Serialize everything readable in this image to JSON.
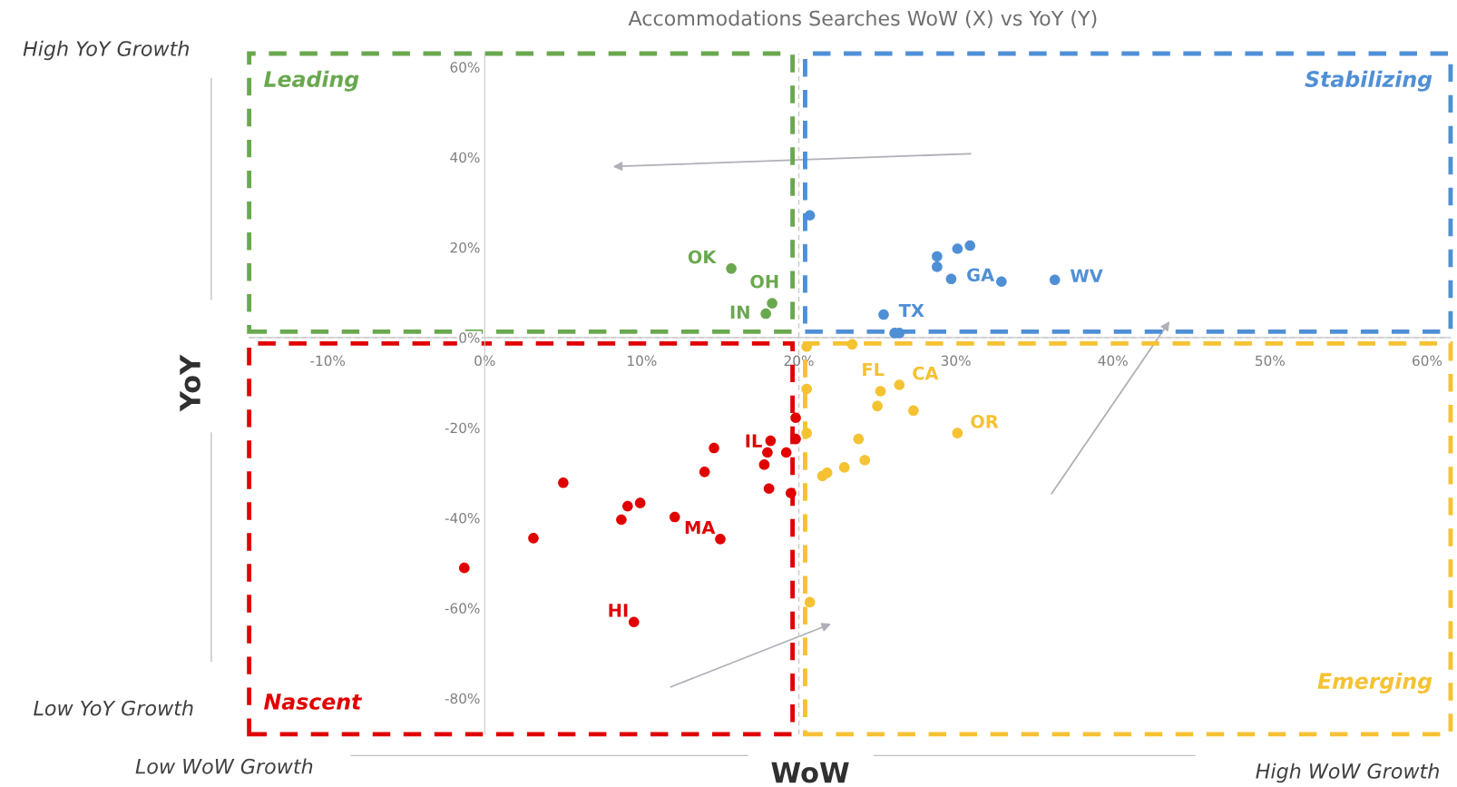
{
  "chart_data": {
    "type": "scatter",
    "title": "Accommodations Searches WoW (X) vs YoY (Y)",
    "xlabel": "WoW",
    "ylabel": "YoY",
    "xlim": [
      -15,
      61.5
    ],
    "ylim": [
      -88,
      63
    ],
    "xticks": [
      {
        "value": -10,
        "label": "-10%"
      },
      {
        "value": 0,
        "label": "0%"
      },
      {
        "value": 10,
        "label": "10%"
      },
      {
        "value": 20,
        "label": "20%"
      },
      {
        "value": 30,
        "label": "30%"
      },
      {
        "value": 40,
        "label": "40%"
      },
      {
        "value": 50,
        "label": "50%"
      },
      {
        "value": 60,
        "label": "60%"
      }
    ],
    "yticks": [
      {
        "value": -80,
        "label": "-80%"
      },
      {
        "value": -60,
        "label": "-60%"
      },
      {
        "value": -40,
        "label": "-40%"
      },
      {
        "value": -20,
        "label": "-20%"
      },
      {
        "value": 0,
        "label": "0%"
      },
      {
        "value": 20,
        "label": "20%"
      },
      {
        "value": 40,
        "label": "40%"
      },
      {
        "value": 60,
        "label": "60%"
      }
    ],
    "marker": "circle",
    "grid": false,
    "legend": false,
    "ref_lines": [
      {
        "axis": "x",
        "value": 20,
        "line_style": "dashed"
      },
      {
        "axis": "y",
        "value": 0,
        "line_style": "dashed"
      }
    ],
    "annotations": [
      "Leading",
      "Stabilizing",
      "Emerging",
      "Nascent",
      "High YoY Growth",
      "Low YoY Growth",
      "Low WoW Growth",
      "High WoW Growth"
    ],
    "series": [
      {
        "color": "#6aa84f",
        "x": [
          15.7,
          18.3,
          17.9
        ],
        "values": [
          15.3,
          7.6,
          5.3
        ],
        "value_labels": [
          "OK",
          "OH",
          "IN"
        ]
      },
      {
        "color": "#4f8fd6",
        "x": [
          20.7,
          28.8,
          28.8,
          30.1,
          30.9,
          29.7,
          32.9,
          36.3,
          25.4,
          26.1,
          26.4
        ],
        "values": [
          27.1,
          18.0,
          15.7,
          19.7,
          20.4,
          13.0,
          12.4,
          12.8,
          5.1,
          1.0,
          1.0
        ],
        "value_labels": [
          null,
          null,
          null,
          null,
          null,
          "GA",
          null,
          "WV",
          "TX",
          null,
          null
        ]
      },
      {
        "color": "#f5c232",
        "x": [
          20.5,
          23.4,
          20.5,
          25.2,
          26.4,
          25.0,
          27.3,
          20.5,
          30.1,
          23.8,
          24.2,
          22.9,
          21.8,
          21.5,
          20.7
        ],
        "values": [
          -2.0,
          -1.5,
          -11.4,
          -11.9,
          -10.5,
          -15.2,
          -16.2,
          -21.2,
          -21.2,
          -22.5,
          -27.2,
          -28.8,
          -30.0,
          -30.7,
          -58.7
        ],
        "value_labels": [
          null,
          null,
          null,
          "FL",
          "CA",
          null,
          null,
          null,
          "OR",
          null,
          null,
          null,
          null,
          null,
          null
        ]
      },
      {
        "color": "#e00000",
        "x": [
          19.8,
          19.8,
          18.2,
          18.0,
          19.2,
          14.6,
          17.8,
          14.0,
          18.1,
          19.5,
          5.0,
          9.1,
          9.9,
          8.7,
          12.1,
          15.0,
          3.1,
          -1.3,
          9.5
        ],
        "values": [
          -17.8,
          -22.5,
          -22.9,
          -25.5,
          -25.5,
          -24.5,
          -28.2,
          -29.8,
          -33.5,
          -34.5,
          -32.2,
          -37.4,
          -36.7,
          -40.4,
          -39.8,
          -44.7,
          -44.5,
          -51.1,
          -63.1
        ],
        "value_labels": [
          null,
          null,
          null,
          "IL",
          null,
          null,
          null,
          null,
          null,
          null,
          null,
          null,
          null,
          null,
          null,
          "MA",
          null,
          null,
          "HI"
        ]
      }
    ]
  }
}
